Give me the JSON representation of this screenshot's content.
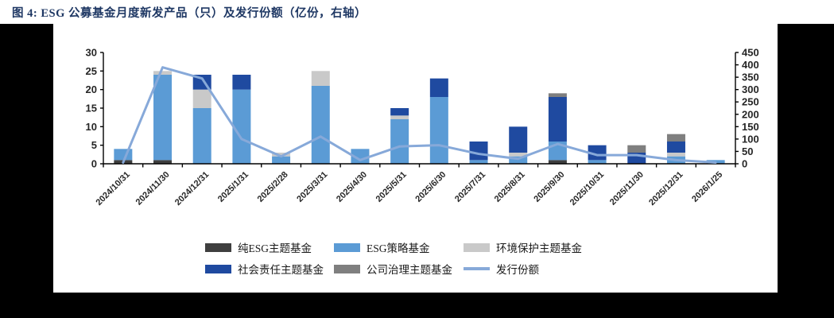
{
  "page": {
    "background": "#000000",
    "panel_background": "#ffffff"
  },
  "header": {
    "title": "图 4:  ESG 公募基金月度新发产品（只）及发行份额（亿份，右轴）",
    "title_color": "#1f3864"
  },
  "chart_data": {
    "type": "bar",
    "subtype": "stacked-bars-with-line-overlay",
    "title": "ESG公募基金月度新发产品（只）及发行份额（亿份，右轴）",
    "grid": false,
    "legend_position": "bottom",
    "categories": [
      "2024/10/31",
      "2024/11/30",
      "2024/12/31",
      "2025/1/31",
      "2025/2/28",
      "2025/3/31",
      "2025/4/30",
      "2025/5/31",
      "2025/6/30",
      "2025/7/31",
      "2025/8/31",
      "2025/9/30",
      "2025/10/31",
      "2025/11/30",
      "2025/12/31",
      "2026/1/25"
    ],
    "series": [
      {
        "name": "纯ESG主题基金",
        "color": "#3f3f3f",
        "axis": "left",
        "values": [
          1,
          1,
          0,
          0,
          0,
          0,
          0,
          0,
          0,
          0,
          0,
          1,
          0,
          0,
          0,
          0
        ]
      },
      {
        "name": "ESG策略基金",
        "color": "#5b9bd5",
        "axis": "left",
        "values": [
          3,
          23,
          15,
          20,
          2,
          21,
          4,
          12,
          18,
          1,
          2,
          5,
          1,
          0,
          2,
          1
        ]
      },
      {
        "name": "环境保护主题基金",
        "color": "#c9c9c9",
        "axis": "left",
        "values": [
          0,
          1,
          5,
          0,
          1,
          4,
          0,
          1,
          0,
          0,
          1,
          0,
          0,
          0,
          1,
          0
        ]
      },
      {
        "name": "社会责任主题基金",
        "color": "#1f4aa0",
        "axis": "left",
        "values": [
          0,
          0,
          4,
          4,
          0,
          0,
          0,
          2,
          5,
          5,
          7,
          12,
          4,
          3,
          3,
          0
        ]
      },
      {
        "name": "公司治理主题基金",
        "color": "#7f7f7f",
        "axis": "left",
        "values": [
          0,
          0,
          0,
          0,
          0,
          0,
          0,
          0,
          0,
          0,
          0,
          1,
          0,
          2,
          2,
          0
        ]
      }
    ],
    "bar_totals": [
      4,
      25,
      24,
      24,
      3,
      25,
      4,
      15,
      23,
      6,
      10,
      19,
      5,
      5,
      8,
      1
    ],
    "line_series": {
      "name": "发行份额",
      "color": "#87a9d9",
      "axis": "right",
      "values": [
        5,
        390,
        345,
        100,
        30,
        110,
        15,
        70,
        75,
        40,
        20,
        80,
        35,
        35,
        15,
        5
      ]
    },
    "left_axis": {
      "min": 0,
      "max": 30,
      "step": 5,
      "ticks": [
        0,
        5,
        10,
        15,
        20,
        25,
        30
      ]
    },
    "right_axis": {
      "min": 0,
      "max": 450,
      "step": 50,
      "ticks": [
        0,
        50,
        100,
        150,
        200,
        250,
        300,
        350,
        400,
        450
      ]
    },
    "axis_color": "#000000",
    "label_color": "#262626"
  },
  "legend": {
    "row1": [
      "纯ESG主题基金",
      "ESG策略基金",
      "环境保护主题基金"
    ],
    "row2": [
      "社会责任主题基金",
      "公司治理主题基金",
      "发行份额"
    ]
  }
}
